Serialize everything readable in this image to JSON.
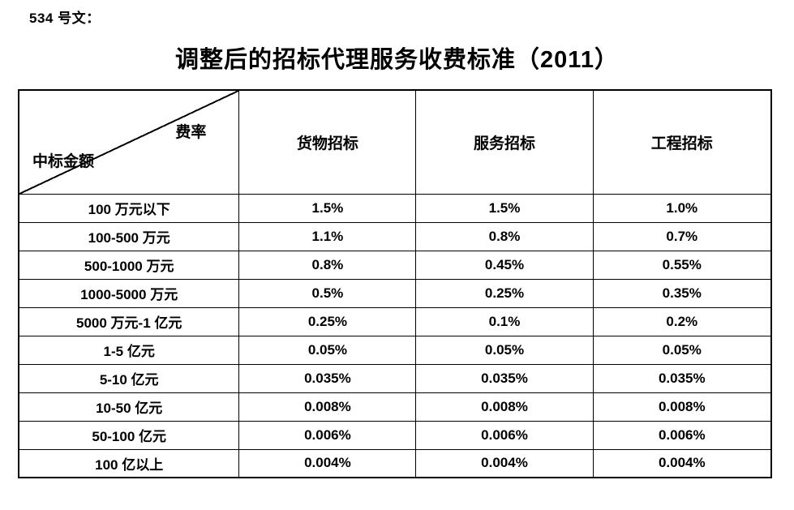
{
  "page": {
    "doc_label": "534 号文："
  },
  "title": "调整后的招标代理服务收费标准（2011）",
  "table": {
    "corner": {
      "top_right": "费率",
      "bottom_left": "中标金额"
    },
    "columns": [
      "货物招标",
      "服务招标",
      "工程招标"
    ],
    "rows": [
      {
        "label": "100 万元以下",
        "goods": "1.5%",
        "service": "1.5%",
        "engineering": "1.0%"
      },
      {
        "label": "100-500 万元",
        "goods": "1.1%",
        "service": "0.8%",
        "engineering": "0.7%"
      },
      {
        "label": "500-1000 万元",
        "goods": "0.8%",
        "service": "0.45%",
        "engineering": "0.55%"
      },
      {
        "label": "1000-5000 万元",
        "goods": "0.5%",
        "service": "0.25%",
        "engineering": "0.35%"
      },
      {
        "label": "5000 万元-1 亿元",
        "goods": "0.25%",
        "service": "0.1%",
        "engineering": "0.2%"
      },
      {
        "label": "1-5 亿元",
        "goods": "0.05%",
        "service": "0.05%",
        "engineering": "0.05%"
      },
      {
        "label": "5-10 亿元",
        "goods": "0.035%",
        "service": "0.035%",
        "engineering": "0.035%"
      },
      {
        "label": "10-50 亿元",
        "goods": "0.008%",
        "service": "0.008%",
        "engineering": "0.008%"
      },
      {
        "label": "50-100 亿元",
        "goods": "0.006%",
        "service": "0.006%",
        "engineering": "0.006%"
      },
      {
        "label": "100 亿以上",
        "goods": "0.004%",
        "service": "0.004%",
        "engineering": "0.004%"
      }
    ],
    "colors": {
      "border": "#000000",
      "background": "#ffffff",
      "text": "#000000"
    }
  }
}
